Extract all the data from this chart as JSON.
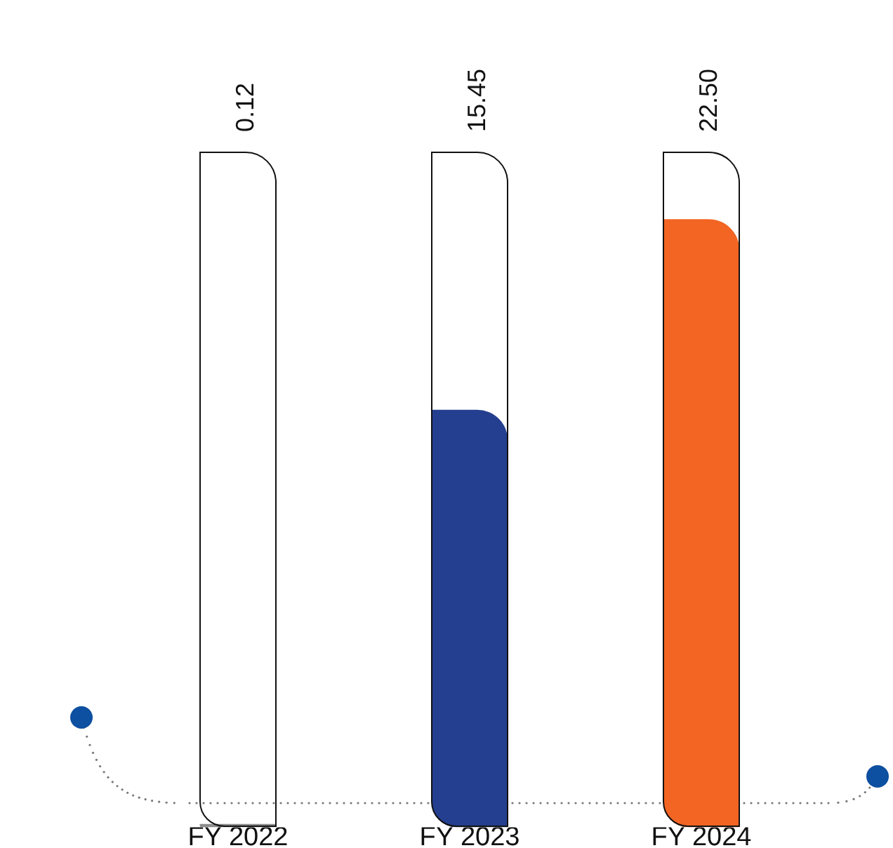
{
  "chart_data": {
    "type": "bar",
    "categories": [
      "FY 2022",
      "FY 2023",
      "FY 2024"
    ],
    "values": [
      0.12,
      15.45,
      22.5
    ],
    "colors": [
      "#8c8c8c",
      "#243f8f",
      "#f26522"
    ],
    "value_labels": [
      "0.12",
      "15.45",
      "22.50"
    ],
    "grid": false,
    "legend": false
  }
}
